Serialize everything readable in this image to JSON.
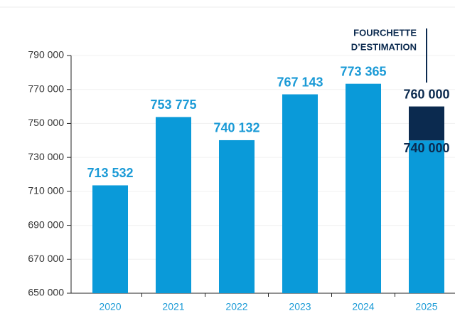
{
  "chart_data": {
    "type": "bar",
    "categories": [
      "2020",
      "2021",
      "2022",
      "2023",
      "2024",
      "2025"
    ],
    "values": [
      713532,
      753775,
      740132,
      767143,
      773365,
      740000
    ],
    "value_labels": [
      "713 532",
      "753 775",
      "740 132",
      "767 143",
      "773 365",
      "740 000"
    ],
    "color": "#0a9ad9",
    "label_color": "#1a9ad6",
    "estimate": {
      "category_index": 5,
      "low": 740000,
      "high": 760000,
      "high_label": "760 000",
      "color": "#0b2a4f",
      "annotation": [
        "FOURCHETTE",
        "D’ESTIMATION"
      ]
    },
    "ylim": [
      650000,
      790000
    ],
    "yticks": [
      {
        "value": 650000,
        "label": "650 000"
      },
      {
        "value": 670000,
        "label": "670 000"
      },
      {
        "value": 690000,
        "label": "690 000"
      },
      {
        "value": 710000,
        "label": "710 000"
      },
      {
        "value": 730000,
        "label": "730 000"
      },
      {
        "value": 750000,
        "label": "750 000"
      },
      {
        "value": 770000,
        "label": "770 000"
      },
      {
        "value": 790000,
        "label": "790 000"
      }
    ],
    "grid": true
  }
}
